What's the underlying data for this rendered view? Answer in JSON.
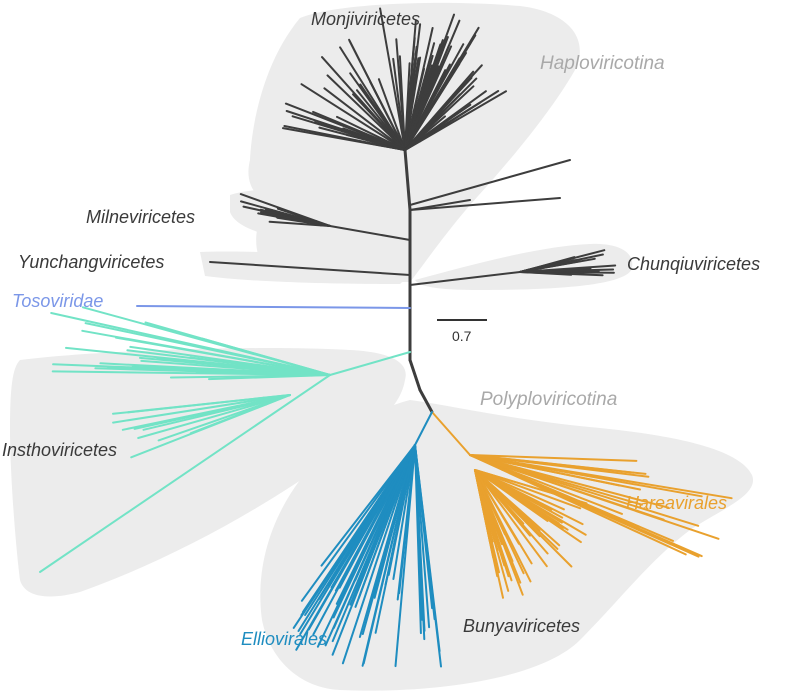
{
  "labels": {
    "monjiviricetes": "Monjiviricetes",
    "haploviricotina": "Haploviricotina",
    "milneviricetes": "Milneviricetes",
    "yunchangviricetes": "Yunchangviricetes",
    "chunqiuviricetes": "Chunqiuviricetes",
    "tosoviridae": "Tosoviridae",
    "polyploviricotina": "Polyploviricotina",
    "insthoviricetes": "Insthoviricetes",
    "hareavirales": "Hareavirales",
    "elliovirales": "Elliovirales",
    "bunyaviricetes": "Bunyaviricetes"
  },
  "scale_bar": {
    "value": "0.7"
  },
  "colors": {
    "haplo_branches": "#3d3d3d",
    "tosoviridae": "#7b97e8",
    "insthoviricetes": "#72e3c6",
    "elliovirales": "#1f8dc0",
    "hareavirales": "#e9a12e",
    "trunk": "#3d3d3d",
    "hull": "#ececec",
    "taxon_label": "#3a3a3a",
    "subphylum_label": "#a9a9a9"
  }
}
